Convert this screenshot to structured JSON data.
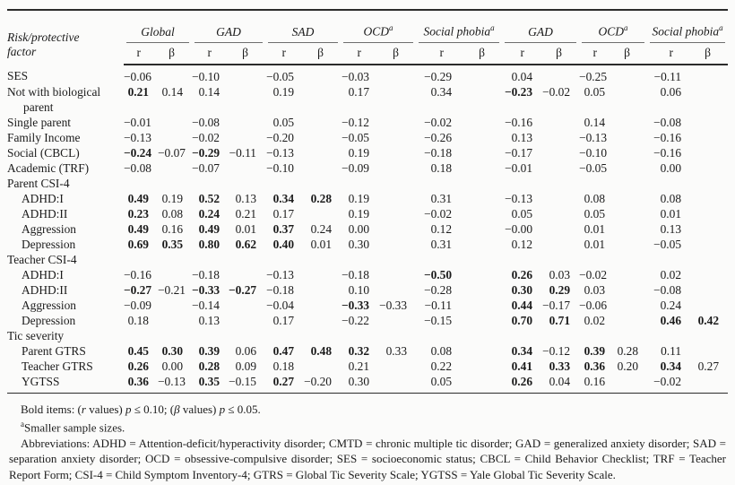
{
  "table": {
    "row_header_line1": "Risk/protective",
    "row_header_line2": "factor",
    "col_groups": [
      {
        "label": "Global",
        "sup": ""
      },
      {
        "label": "GAD",
        "sup": ""
      },
      {
        "label": "SAD",
        "sup": ""
      },
      {
        "label": "OCD",
        "sup": "a"
      },
      {
        "label": "Social phobia",
        "sup": "a"
      },
      {
        "label": "GAD",
        "sup": ""
      },
      {
        "label": "OCD",
        "sup": "a"
      },
      {
        "label": "Social phobia",
        "sup": "a"
      }
    ],
    "sub_cols": [
      "r",
      "β"
    ],
    "rows": [
      {
        "label": "SES",
        "ind": 0,
        "vals": [
          "−0.06",
          "",
          "−0.10",
          "",
          "−0.05",
          "",
          "−0.03",
          "",
          "−0.29",
          "",
          "0.04",
          "",
          "−0.25",
          "",
          "−0.11",
          ""
        ],
        "bold": []
      },
      {
        "label": "Not with biological parent",
        "ind": 0,
        "vals": [
          "0.21",
          "0.14",
          "0.14",
          "",
          "0.19",
          "",
          "0.17",
          "",
          "0.34",
          "",
          "−0.23",
          "−0.02",
          "0.05",
          "",
          "0.06",
          ""
        ],
        "bold": [
          0,
          10
        ]
      },
      {
        "label": "Single parent",
        "ind": 0,
        "vals": [
          "−0.01",
          "",
          "−0.08",
          "",
          "0.05",
          "",
          "−0.12",
          "",
          "−0.02",
          "",
          "−0.16",
          "",
          "0.14",
          "",
          "−0.08",
          ""
        ],
        "bold": []
      },
      {
        "label": "Family Income",
        "ind": 0,
        "vals": [
          "−0.13",
          "",
          "−0.02",
          "",
          "−0.20",
          "",
          "−0.05",
          "",
          "−0.26",
          "",
          "0.13",
          "",
          "−0.13",
          "",
          "−0.16",
          ""
        ],
        "bold": []
      },
      {
        "label": "Social (CBCL)",
        "ind": 0,
        "vals": [
          "−0.24",
          "−0.07",
          "−0.29",
          "−0.11",
          "−0.13",
          "",
          "0.19",
          "",
          "−0.18",
          "",
          "−0.17",
          "",
          "−0.10",
          "",
          "−0.16",
          ""
        ],
        "bold": [
          0,
          2
        ]
      },
      {
        "label": "Academic (TRF)",
        "ind": 0,
        "vals": [
          "−0.08",
          "",
          "−0.07",
          "",
          "−0.10",
          "",
          "−0.09",
          "",
          "0.18",
          "",
          "−0.01",
          "",
          "−0.05",
          "",
          "0.00",
          ""
        ],
        "bold": []
      },
      {
        "label": "Parent CSI-4",
        "ind": 0,
        "section": true
      },
      {
        "label": "ADHD:I",
        "ind": 1,
        "vals": [
          "0.49",
          "0.19",
          "0.52",
          "0.13",
          "0.34",
          "0.28",
          "0.19",
          "",
          "0.31",
          "",
          "−0.13",
          "",
          "0.08",
          "",
          "0.08",
          ""
        ],
        "bold": [
          0,
          2,
          4,
          5
        ]
      },
      {
        "label": "ADHD:II",
        "ind": 1,
        "vals": [
          "0.23",
          "0.08",
          "0.24",
          "0.21",
          "0.17",
          "",
          "0.19",
          "",
          "−0.02",
          "",
          "0.05",
          "",
          "0.05",
          "",
          "0.01",
          ""
        ],
        "bold": [
          0,
          2
        ]
      },
      {
        "label": "Aggression",
        "ind": 1,
        "vals": [
          "0.49",
          "0.16",
          "0.49",
          "0.01",
          "0.37",
          "0.24",
          "0.00",
          "",
          "0.12",
          "",
          "−0.00",
          "",
          "0.01",
          "",
          "0.13",
          ""
        ],
        "bold": [
          0,
          2,
          4
        ]
      },
      {
        "label": "Depression",
        "ind": 1,
        "vals": [
          "0.69",
          "0.35",
          "0.80",
          "0.62",
          "0.40",
          "0.01",
          "0.30",
          "",
          "0.31",
          "",
          "0.12",
          "",
          "0.01",
          "",
          "−0.05",
          ""
        ],
        "bold": [
          0,
          1,
          2,
          3,
          4
        ]
      },
      {
        "label": "Teacher CSI-4",
        "ind": 0,
        "section": true
      },
      {
        "label": "ADHD:I",
        "ind": 1,
        "vals": [
          "−0.16",
          "",
          "−0.18",
          "",
          "−0.13",
          "",
          "−0.18",
          "",
          "−0.50",
          "",
          "0.26",
          "0.03",
          "−0.02",
          "",
          "0.02",
          ""
        ],
        "bold": [
          8,
          10
        ]
      },
      {
        "label": "ADHD:II",
        "ind": 1,
        "vals": [
          "−0.27",
          "−0.21",
          "−0.33",
          "−0.27",
          "−0.18",
          "",
          "0.10",
          "",
          "−0.28",
          "",
          "0.30",
          "0.29",
          "0.03",
          "",
          "−0.08",
          ""
        ],
        "bold": [
          0,
          2,
          3,
          10,
          11
        ]
      },
      {
        "label": "Aggression",
        "ind": 1,
        "vals": [
          "−0.09",
          "",
          "−0.14",
          "",
          "−0.04",
          "",
          "−0.33",
          "−0.33",
          "−0.11",
          "",
          "0.44",
          "−0.17",
          "−0.06",
          "",
          "0.24",
          ""
        ],
        "bold": [
          6,
          10
        ]
      },
      {
        "label": "Depression",
        "ind": 1,
        "vals": [
          "0.18",
          "",
          "0.13",
          "",
          "0.17",
          "",
          "−0.22",
          "",
          "−0.15",
          "",
          "0.70",
          "0.71",
          "0.02",
          "",
          "0.46",
          "0.42"
        ],
        "bold": [
          10,
          11,
          14,
          15
        ]
      },
      {
        "label": "Tic severity",
        "ind": 0,
        "section": true
      },
      {
        "label": "Parent GTRS",
        "ind": 1,
        "vals": [
          "0.45",
          "0.30",
          "0.39",
          "0.06",
          "0.47",
          "0.48",
          "0.32",
          "0.33",
          "0.08",
          "",
          "0.34",
          "−0.12",
          "0.39",
          "0.28",
          "0.11",
          ""
        ],
        "bold": [
          0,
          1,
          2,
          4,
          5,
          6,
          10,
          12
        ]
      },
      {
        "label": "Teacher GTRS",
        "ind": 1,
        "vals": [
          "0.26",
          "0.00",
          "0.28",
          "0.09",
          "0.18",
          "",
          "0.21",
          "",
          "0.22",
          "",
          "0.41",
          "0.33",
          "0.36",
          "0.20",
          "0.34",
          "0.27"
        ],
        "bold": [
          0,
          2,
          10,
          11,
          12,
          14
        ]
      },
      {
        "label": "YGTSS",
        "ind": 1,
        "vals": [
          "0.36",
          "−0.13",
          "0.35",
          "−0.15",
          "0.27",
          "−0.20",
          "0.30",
          "",
          "0.05",
          "",
          "0.26",
          "0.04",
          "0.16",
          "",
          "−0.02",
          ""
        ],
        "bold": [
          0,
          2,
          4,
          10
        ]
      }
    ]
  },
  "footnotes": {
    "bold_items_parts": [
      {
        "t": "Bold items: (",
        "i": 0
      },
      {
        "t": "r",
        "i": 1
      },
      {
        "t": " values) ",
        "i": 0
      },
      {
        "t": "p",
        "i": 1
      },
      {
        "t": " ≤ 0.10; (",
        "i": 0
      },
      {
        "t": "β",
        "i": 1
      },
      {
        "t": " values) ",
        "i": 0
      },
      {
        "t": "p",
        "i": 1
      },
      {
        "t": " ≤ 0.05.",
        "i": 0
      }
    ],
    "sample_sizes_sup": "a",
    "sample_sizes_text": "Smaller sample sizes.",
    "abbreviations": "Abbreviations: ADHD = Attention-deficit/hyperactivity disorder; CMTD = chronic multiple tic disorder; GAD = generalized anxiety disorder; SAD = separation anxiety disorder; OCD = obsessive-compulsive disorder; SES = socioeconomic status; CBCL = Child Behavior Checklist; TRF = Teacher Report Form; CSI-4 = Child Symptom Inventory-4; GTRS = Global Tic Severity Scale; YGTSS = Yale Global Tic Severity Scale."
  }
}
